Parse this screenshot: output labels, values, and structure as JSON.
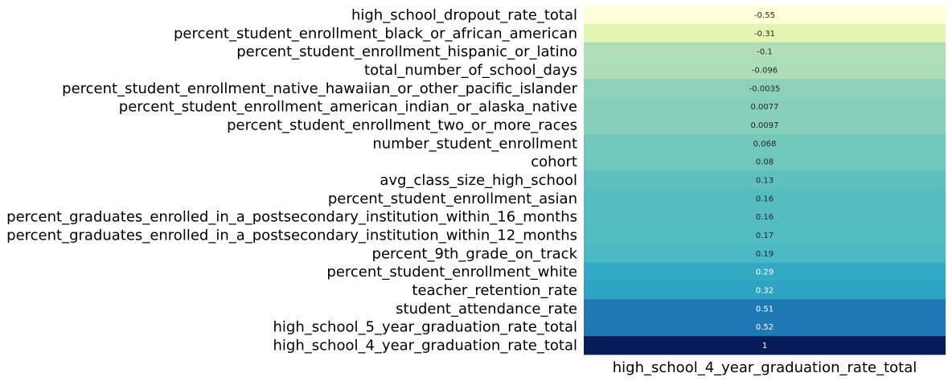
{
  "chart_data": {
    "type": "heatmap",
    "colormap": "YlGnBu",
    "columns": [
      "high_school_4_year_graduation_rate_total"
    ],
    "rows": [
      {
        "label": "high_school_dropout_rate_total",
        "value": -0.55,
        "display": "-0.55"
      },
      {
        "label": "percent_student_enrollment_black_or_african_american",
        "value": -0.31,
        "display": "-0.31"
      },
      {
        "label": "percent_student_enrollment_hispanic_or_latino",
        "value": -0.1,
        "display": "-0.1"
      },
      {
        "label": "total_number_of_school_days",
        "value": -0.096,
        "display": "-0.096"
      },
      {
        "label": "percent_student_enrollment_native_hawaiian_or_other_pacific_islander",
        "value": -0.0035,
        "display": "-0.0035"
      },
      {
        "label": "percent_student_enrollment_american_indian_or_alaska_native",
        "value": 0.0077,
        "display": "0.0077"
      },
      {
        "label": "percent_student_enrollment_two_or_more_races",
        "value": 0.0097,
        "display": "0.0097"
      },
      {
        "label": "number_student_enrollment",
        "value": 0.068,
        "display": "0.068"
      },
      {
        "label": "cohort",
        "value": 0.08,
        "display": "0.08"
      },
      {
        "label": "avg_class_size_high_school",
        "value": 0.13,
        "display": "0.13"
      },
      {
        "label": "percent_student_enrollment_asian",
        "value": 0.16,
        "display": "0.16"
      },
      {
        "label": "percent_graduates_enrolled_in_a_postsecondary_institution_within_16_months",
        "value": 0.16,
        "display": "0.16"
      },
      {
        "label": "percent_graduates_enrolled_in_a_postsecondary_institution_within_12_months",
        "value": 0.17,
        "display": "0.17"
      },
      {
        "label": "percent_9th_grade_on_track",
        "value": 0.19,
        "display": "0.19"
      },
      {
        "label": "percent_student_enrollment_white",
        "value": 0.29,
        "display": "0.29"
      },
      {
        "label": "teacher_retention_rate",
        "value": 0.32,
        "display": "0.32"
      },
      {
        "label": "student_attendance_rate",
        "value": 0.51,
        "display": "0.51"
      },
      {
        "label": "high_school_5_year_graduation_rate_total",
        "value": 0.52,
        "display": "0.52"
      },
      {
        "label": "high_school_4_year_graduation_rate_total",
        "value": 1,
        "display": "1"
      }
    ],
    "vmin": -0.55,
    "vmax": 1,
    "colorbar": false
  }
}
